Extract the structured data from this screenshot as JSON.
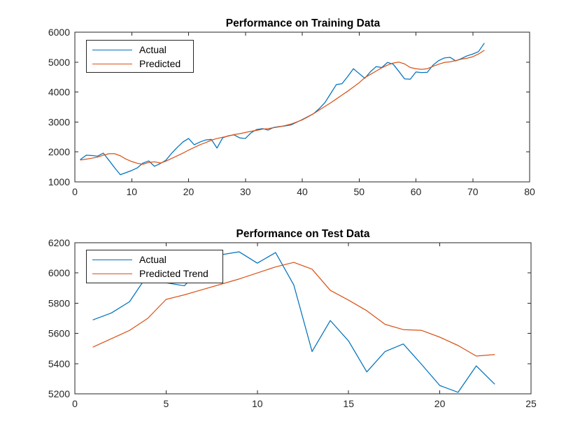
{
  "figure": {
    "background": "#ffffff",
    "axis_color": "#262626",
    "tick_label_color": "#262626",
    "title_color": "#000000"
  },
  "chart_data": [
    {
      "type": "line",
      "title": "Performance on Training Data",
      "xlabel": "",
      "ylabel": "",
      "xlim": [
        0,
        80
      ],
      "ylim": [
        1000,
        6000
      ],
      "xticks": [
        0,
        10,
        20,
        30,
        40,
        50,
        60,
        70,
        80
      ],
      "yticks": [
        1000,
        2000,
        3000,
        4000,
        5000,
        6000
      ],
      "grid": false,
      "legend_position": "upper-left",
      "x": [
        1,
        2,
        3,
        4,
        5,
        6,
        7,
        8,
        9,
        10,
        11,
        12,
        13,
        14,
        15,
        16,
        17,
        18,
        19,
        20,
        21,
        22,
        23,
        24,
        25,
        26,
        27,
        28,
        29,
        30,
        31,
        32,
        33,
        34,
        35,
        36,
        37,
        38,
        39,
        40,
        41,
        42,
        43,
        44,
        45,
        46,
        47,
        48,
        49,
        50,
        51,
        52,
        53,
        54,
        55,
        56,
        57,
        58,
        59,
        60,
        61,
        62,
        63,
        64,
        65,
        66,
        67,
        68,
        69,
        70,
        71,
        72
      ],
      "series": [
        {
          "name": "Actual",
          "color": "#0072BD",
          "values": [
            1750,
            1890,
            1880,
            1860,
            1960,
            1720,
            1470,
            1240,
            1310,
            1380,
            1470,
            1630,
            1700,
            1520,
            1610,
            1720,
            1950,
            2150,
            2330,
            2450,
            2240,
            2330,
            2400,
            2420,
            2130,
            2470,
            2540,
            2570,
            2470,
            2450,
            2640,
            2750,
            2780,
            2730,
            2820,
            2850,
            2870,
            2900,
            2990,
            3080,
            3180,
            3280,
            3450,
            3650,
            3950,
            4250,
            4280,
            4520,
            4780,
            4620,
            4460,
            4680,
            4850,
            4820,
            4990,
            4930,
            4690,
            4440,
            4430,
            4670,
            4650,
            4660,
            4900,
            5050,
            5140,
            5160,
            5040,
            5120,
            5210,
            5270,
            5350,
            5625
          ]
        },
        {
          "name": "Predicted",
          "color": "#D95319",
          "values": [
            1730,
            1760,
            1790,
            1830,
            1890,
            1940,
            1940,
            1870,
            1760,
            1680,
            1620,
            1590,
            1650,
            1670,
            1630,
            1690,
            1780,
            1870,
            1960,
            2060,
            2150,
            2240,
            2310,
            2390,
            2450,
            2490,
            2530,
            2580,
            2610,
            2650,
            2690,
            2720,
            2760,
            2780,
            2810,
            2840,
            2880,
            2930,
            3000,
            3070,
            3170,
            3280,
            3400,
            3520,
            3640,
            3770,
            3900,
            4030,
            4170,
            4310,
            4480,
            4590,
            4700,
            4810,
            4900,
            4970,
            5000,
            4940,
            4820,
            4780,
            4760,
            4780,
            4860,
            4930,
            4990,
            5010,
            5050,
            5100,
            5130,
            5180,
            5270,
            5390
          ]
        }
      ]
    },
    {
      "type": "line",
      "title": "Performance on Test Data",
      "xlabel": "",
      "ylabel": "",
      "xlim": [
        0,
        25
      ],
      "ylim": [
        5200,
        6200
      ],
      "xticks": [
        0,
        5,
        10,
        15,
        20,
        25
      ],
      "yticks": [
        5200,
        5400,
        5600,
        5800,
        6000,
        6200
      ],
      "grid": false,
      "legend_position": "upper-left",
      "x": [
        1,
        2,
        3,
        4,
        5,
        6,
        7,
        8,
        9,
        10,
        11,
        12,
        13,
        14,
        15,
        16,
        17,
        18,
        19,
        20,
        21,
        22,
        23
      ],
      "series": [
        {
          "name": "Actual",
          "color": "#0072BD",
          "values": [
            5690,
            5735,
            5810,
            5990,
            5935,
            5915,
            6040,
            6120,
            6140,
            6065,
            6135,
            5920,
            5480,
            5685,
            5550,
            5345,
            5480,
            5530,
            5395,
            5255,
            5210,
            5385,
            5265
          ]
        },
        {
          "name": "Predicted Trend",
          "color": "#D95319",
          "values": [
            5510,
            5565,
            5620,
            5700,
            5825,
            5855,
            5890,
            5925,
            5960,
            6000,
            6040,
            6070,
            6025,
            5885,
            5820,
            5750,
            5660,
            5625,
            5620,
            5575,
            5520,
            5450,
            5460
          ]
        }
      ]
    }
  ]
}
